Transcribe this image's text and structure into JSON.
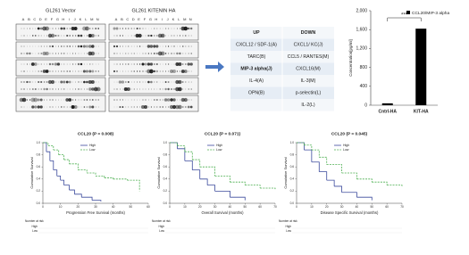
{
  "blots": {
    "panels": [
      {
        "title": "GL261 Vector",
        "columns": [
          "A",
          "B",
          "C",
          "D",
          "E",
          "F",
          "G",
          "H",
          "I",
          "J",
          "K",
          "L",
          "M",
          "N"
        ]
      },
      {
        "title": "GL261 KITENIN HA",
        "columns": [
          "A",
          "B",
          "C",
          "D",
          "E",
          "F",
          "G",
          "H",
          "I",
          "J",
          "K",
          "L",
          "M",
          "N"
        ]
      }
    ]
  },
  "table": {
    "header": [
      "UP",
      "DOWN"
    ],
    "rows": [
      [
        "CXCL12 / SDF-1(A)",
        "CXCL1/ KC(J)"
      ],
      [
        "TARC(B)",
        "CCL5 / RANTES(M)"
      ],
      [
        "MIP-3 alpha(J)",
        "CXCL16(M)"
      ],
      [
        "IL-4(A)",
        "IL-3(M)"
      ],
      [
        "OPN(B)",
        "p-selectin(L)"
      ],
      [
        null,
        "IL-2(L)"
      ]
    ]
  },
  "chart_data": [
    {
      "type": "bar",
      "legend": "CCL20/MIP-3 alpha",
      "y_label": "Concentration[pg/ml]",
      "annotation": "***",
      "categories": [
        "Cntrl-HA",
        "KIT-HA"
      ],
      "values": [
        40,
        1620
      ],
      "color": "#000000",
      "ylim": [
        0,
        2000
      ],
      "yticks": [
        0,
        400,
        800,
        {
          "value": 1200,
          "label": "1,200"
        },
        {
          "value": 1600,
          "label": "1,600"
        },
        {
          "value": 2000,
          "label": "2,000"
        }
      ]
    },
    {
      "type": "line",
      "title": "CCL20 (P = 0.008)",
      "y_label": "Cumulative Survival",
      "x_label": "Progression Free Survival (months)",
      "xlim": [
        0,
        60
      ],
      "xticks": [
        0,
        10,
        20,
        30,
        40,
        50,
        60
      ],
      "ylim": [
        0,
        1
      ],
      "yticks": [
        {
          "value": 0,
          "label": "0.0"
        },
        {
          "value": 0.2,
          "label": "0.2"
        },
        {
          "value": 0.4,
          "label": "0.4"
        },
        {
          "value": 0.6,
          "label": "0.6"
        },
        {
          "value": 0.8,
          "label": "0.8"
        },
        {
          "value": 1,
          "label": "1.0"
        }
      ],
      "series": [
        {
          "name": "High",
          "color": "#3b4a9c",
          "x": [
            0,
            2,
            4,
            6,
            8,
            10,
            12,
            15,
            18,
            22,
            28,
            33
          ],
          "values": [
            1,
            0.85,
            0.7,
            0.55,
            0.45,
            0.38,
            0.3,
            0.22,
            0.15,
            0.1,
            0.05,
            0.03
          ]
        },
        {
          "name": "Low",
          "color": "#4caf50",
          "dashed": true,
          "x": [
            0,
            3,
            6,
            9,
            12,
            15,
            20,
            25,
            30,
            35,
            40,
            48,
            55
          ],
          "values": [
            1,
            0.95,
            0.88,
            0.8,
            0.72,
            0.65,
            0.55,
            0.5,
            0.45,
            0.42,
            0.4,
            0.38,
            0.2
          ]
        }
      ],
      "risk_table": {
        "title": "Number at risk",
        "rows": [
          "High",
          "Low"
        ]
      }
    },
    {
      "type": "line",
      "title": "CCL20 (P = 0.071)",
      "y_label": "Cumulative Survival",
      "x_label": "Overall Survival (months)",
      "xlim": [
        0,
        70
      ],
      "xticks": [
        0,
        10,
        20,
        30,
        40,
        50,
        60,
        70
      ],
      "ylim": [
        0,
        1
      ],
      "yticks": [
        {
          "value": 0,
          "label": "0.0"
        },
        {
          "value": 0.2,
          "label": "0.2"
        },
        {
          "value": 0.4,
          "label": "0.4"
        },
        {
          "value": 0.6,
          "label": "0.6"
        },
        {
          "value": 0.8,
          "label": "0.8"
        },
        {
          "value": 1,
          "label": "1.0"
        }
      ],
      "series": [
        {
          "name": "High",
          "color": "#3b4a9c",
          "x": [
            0,
            5,
            10,
            15,
            20,
            25,
            30,
            40,
            50
          ],
          "values": [
            1,
            0.9,
            0.7,
            0.55,
            0.4,
            0.3,
            0.2,
            0.1,
            0.05
          ]
        },
        {
          "name": "Low",
          "color": "#4caf50",
          "dashed": true,
          "x": [
            0,
            5,
            10,
            15,
            20,
            30,
            40,
            50,
            60,
            70
          ],
          "values": [
            1,
            0.95,
            0.85,
            0.72,
            0.6,
            0.45,
            0.35,
            0.3,
            0.25,
            0.22
          ]
        }
      ],
      "risk_table": {
        "title": "Number at risk",
        "rows": [
          "High",
          "Low"
        ]
      }
    },
    {
      "type": "line",
      "title": "CCL20 (P = 0.045)",
      "y_label": "Cumulative Survival",
      "x_label": "Disease Specific Survival (months)",
      "xlim": [
        0,
        70
      ],
      "xticks": [
        0,
        10,
        20,
        30,
        40,
        50,
        60,
        70
      ],
      "ylim": [
        0,
        1
      ],
      "yticks": [
        {
          "value": 0,
          "label": "0.0"
        },
        {
          "value": 0.2,
          "label": "0.2"
        },
        {
          "value": 0.4,
          "label": "0.4"
        },
        {
          "value": 0.6,
          "label": "0.6"
        },
        {
          "value": 0.8,
          "label": "0.8"
        },
        {
          "value": 1,
          "label": "1.0"
        }
      ],
      "series": [
        {
          "name": "High",
          "color": "#3b4a9c",
          "x": [
            0,
            5,
            10,
            15,
            20,
            25,
            30,
            40,
            50
          ],
          "values": [
            1,
            0.88,
            0.68,
            0.52,
            0.38,
            0.28,
            0.18,
            0.1,
            0.05
          ]
        },
        {
          "name": "Low",
          "color": "#4caf50",
          "dashed": true,
          "x": [
            0,
            5,
            10,
            15,
            20,
            30,
            40,
            50,
            60,
            70
          ],
          "values": [
            1,
            0.96,
            0.88,
            0.76,
            0.64,
            0.5,
            0.4,
            0.35,
            0.3,
            0.28
          ]
        }
      ],
      "risk_table": {
        "title": "Number at risk",
        "rows": [
          "High",
          "Low"
        ]
      }
    }
  ]
}
